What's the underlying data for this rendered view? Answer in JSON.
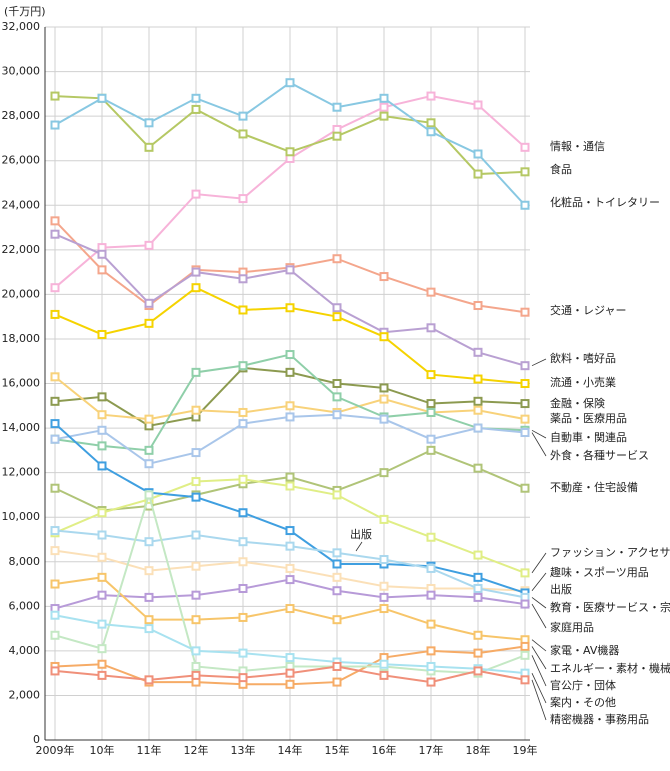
{
  "chart_data": {
    "type": "line",
    "unit_label": "(千万円)",
    "annotation": "出版",
    "categories": [
      "2009年",
      "10年",
      "11年",
      "12年",
      "13年",
      "14年",
      "15年",
      "16年",
      "17年",
      "18年",
      "19年"
    ],
    "ylim": [
      0,
      32000
    ],
    "yticks": [
      0,
      {
        "value": 2000,
        "label": "2,000"
      },
      {
        "value": 4000,
        "label": "4,000"
      },
      {
        "value": 6000,
        "label": "6,000"
      },
      {
        "value": 8000,
        "label": "8,000"
      },
      {
        "value": 10000,
        "label": "10,000"
      },
      {
        "value": 12000,
        "label": "12,000"
      },
      {
        "value": 14000,
        "label": "14,000"
      },
      {
        "value": 16000,
        "label": "16,000"
      },
      {
        "value": 18000,
        "label": "18,000"
      },
      {
        "value": 20000,
        "label": "20,000"
      },
      {
        "value": 22000,
        "label": "22,000"
      },
      {
        "value": 24000,
        "label": "24,000"
      },
      {
        "value": 26000,
        "label": "26,000"
      },
      {
        "value": 28000,
        "label": "28,000"
      },
      {
        "value": 30000,
        "label": "30,000"
      },
      {
        "value": 32000,
        "label": "32,000"
      }
    ],
    "grid": true,
    "series": [
      {
        "name": "情報・通信",
        "color": "#f7b3d9",
        "values": [
          20300,
          22100,
          22200,
          24500,
          24300,
          26100,
          27400,
          28400,
          28900,
          28500,
          26600
        ]
      },
      {
        "name": "食品",
        "color": "#b5c864",
        "values": [
          28900,
          28800,
          26600,
          28300,
          27200,
          26400,
          27100,
          28000,
          27700,
          25400,
          25500
        ]
      },
      {
        "name": "化粧品・トイレタリー",
        "color": "#88c8e2",
        "values": [
          27600,
          28800,
          27700,
          28800,
          28000,
          29500,
          28400,
          28800,
          27300,
          26300,
          24000
        ]
      },
      {
        "name": "交通・レジャー",
        "color": "#f4a68c",
        "values": [
          23300,
          21100,
          19500,
          21100,
          21000,
          21200,
          21600,
          20800,
          20100,
          19500,
          19200
        ]
      },
      {
        "name": "飲料・嗜好品",
        "color": "#b9a0d2",
        "values": [
          22700,
          21800,
          19600,
          21000,
          20700,
          21100,
          19400,
          18300,
          18500,
          17400,
          16800
        ]
      },
      {
        "name": "流通・小売業",
        "color": "#f5d300",
        "values": [
          19100,
          18200,
          18700,
          20300,
          19300,
          19400,
          19000,
          18100,
          16400,
          16200,
          16000
        ]
      },
      {
        "name": "金融・保険",
        "color": "#8c9a50",
        "values": [
          15200,
          15400,
          14100,
          14500,
          16700,
          16500,
          16000,
          15800,
          15100,
          15200,
          15100
        ]
      },
      {
        "name": "薬品・医療用品",
        "color": "#f8d27a",
        "values": [
          16300,
          14600,
          14400,
          14800,
          14700,
          15000,
          14700,
          15300,
          14700,
          14800,
          14400
        ]
      },
      {
        "name": "自動車・関連品",
        "color": "#8fcfa9",
        "values": [
          13500,
          13200,
          13000,
          16500,
          16800,
          17300,
          15400,
          14500,
          14700,
          14000,
          13900
        ]
      },
      {
        "name": "外食・各種サービス",
        "color": "#a9c6ea",
        "values": [
          13500,
          13900,
          12400,
          12900,
          14200,
          14500,
          14600,
          14400,
          13500,
          14000,
          13800
        ]
      },
      {
        "name": "不動産・住宅設備",
        "color": "#b0c478",
        "values": [
          11300,
          10300,
          10500,
          11000,
          11500,
          11800,
          11200,
          12000,
          13000,
          12200,
          11300
        ]
      },
      {
        "name": "ファッション・アクセサリー",
        "color": "#e0ee86",
        "values": [
          9300,
          10200,
          10800,
          11600,
          11700,
          11400,
          11000,
          9900,
          9100,
          8300,
          7500
        ]
      },
      {
        "name": "趣味・スポーツ用品",
        "color": "#fbe0b8",
        "values": [
          8500,
          8200,
          7600,
          7800,
          8000,
          7700,
          7300,
          6900,
          6800,
          6800,
          6700
        ]
      },
      {
        "name": "出版",
        "color": "#3f9fe0",
        "values": [
          14200,
          12300,
          11100,
          10900,
          10200,
          9400,
          7900,
          7900,
          7800,
          7300,
          6600
        ]
      },
      {
        "name": "教育・医療サービス・宗教",
        "color": "#aad8ee",
        "values": [
          9400,
          9200,
          8900,
          9200,
          8900,
          8700,
          8400,
          8100,
          7700,
          6800,
          6400
        ]
      },
      {
        "name": "家庭用品",
        "color": "#b79ad8",
        "values": [
          5900,
          6500,
          6400,
          6500,
          6800,
          7200,
          6700,
          6400,
          6500,
          6400,
          6100
        ]
      },
      {
        "name": "家電・AV機器",
        "color": "#f7c56a",
        "values": [
          7000,
          7300,
          5400,
          5400,
          5500,
          5900,
          5400,
          5900,
          5200,
          4700,
          4500
        ]
      },
      {
        "name": "エネルギー・素材・機械",
        "color": "#f6ab66",
        "values": [
          3300,
          3400,
          2600,
          2600,
          2500,
          2500,
          2600,
          3700,
          4000,
          3900,
          4200
        ]
      },
      {
        "name": "官公庁・団体",
        "color": "#c4e8c4",
        "values": [
          4700,
          4100,
          11000,
          3300,
          3100,
          3300,
          3300,
          3300,
          3100,
          3000,
          3800
        ]
      },
      {
        "name": "案内・その他",
        "color": "#a8e2f0",
        "values": [
          5600,
          5200,
          5000,
          4000,
          3900,
          3700,
          3500,
          3400,
          3300,
          3200,
          3000
        ]
      },
      {
        "name": "精密機器・事務用品",
        "color": "#f0907a",
        "values": [
          3100,
          2900,
          2700,
          2900,
          2800,
          3000,
          3300,
          2900,
          2600,
          3100,
          2700
        ]
      }
    ]
  }
}
